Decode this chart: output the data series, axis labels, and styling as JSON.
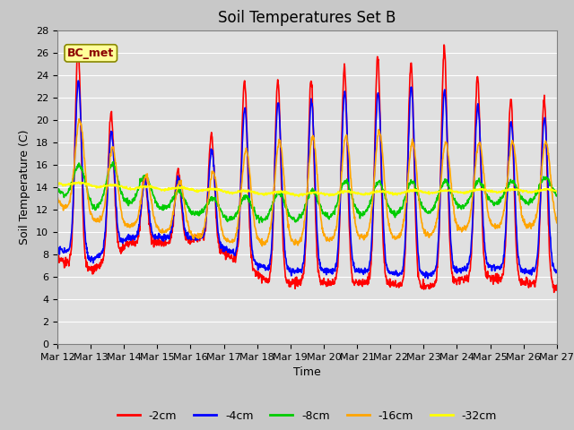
{
  "title": "Soil Temperatures Set B",
  "xlabel": "Time",
  "ylabel": "Soil Temperature (C)",
  "annotation": "BC_met",
  "ylim": [
    0,
    28
  ],
  "series_colors": {
    "-2cm": "#ff0000",
    "-4cm": "#0000ff",
    "-8cm": "#00cc00",
    "-16cm": "#ffa500",
    "-32cm": "#ffff00"
  },
  "x_tick_labels": [
    "Mar 12",
    "Mar 13",
    "Mar 14",
    "Mar 15",
    "Mar 16",
    "Mar 17",
    "Mar 18",
    "Mar 19",
    "Mar 20",
    "Mar 21",
    "Mar 22",
    "Mar 23",
    "Mar 24",
    "Mar 25",
    "Mar 26",
    "Mar 27"
  ],
  "fig_bg": "#c8c8c8",
  "plot_bg": "#e0e0e0",
  "annotation_bg": "#ffff99",
  "annotation_border": "#888800",
  "title_fontsize": 12,
  "axis_label_fontsize": 9,
  "tick_fontsize": 8,
  "legend_fontsize": 9,
  "linewidth": 1.2
}
